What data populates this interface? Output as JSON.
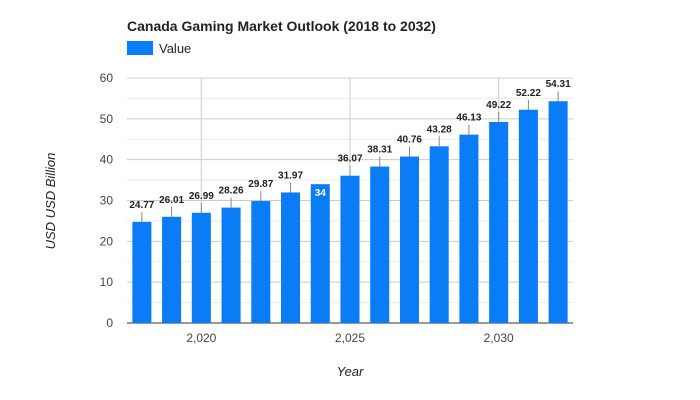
{
  "chart_data": {
    "type": "bar",
    "title": "Canada Gaming Market Outlook (2018 to 2032)",
    "xlabel": "Year",
    "ylabel": "USD USD Billion",
    "legend": {
      "position": "top-left",
      "entries": [
        "Value"
      ]
    },
    "series": [
      {
        "name": "Value",
        "color": "#0a7cf5",
        "x": [
          2018,
          2019,
          2020,
          2021,
          2022,
          2023,
          2024,
          2025,
          2026,
          2027,
          2028,
          2029,
          2030,
          2031,
          2032
        ],
        "values": [
          24.77,
          26.01,
          26.99,
          28.26,
          29.87,
          31.97,
          34,
          36.07,
          38.31,
          40.76,
          43.28,
          46.13,
          49.22,
          52.22,
          54.31
        ],
        "labels": [
          "24.77",
          "26.01",
          "26.99",
          "28.26",
          "29.87",
          "31.97",
          "34",
          "36.07",
          "38.31",
          "40.76",
          "43.28",
          "46.13",
          "49.22",
          "52.22",
          "54.31"
        ],
        "label_inside": [
          false,
          false,
          false,
          false,
          false,
          false,
          true,
          false,
          false,
          false,
          false,
          false,
          false,
          false,
          false
        ]
      }
    ],
    "xticks": [
      2020,
      2025,
      2030
    ],
    "xtick_labels": [
      "2,020",
      "2,025",
      "2,030"
    ],
    "ylim": [
      0,
      60
    ],
    "yticks": [
      0,
      10,
      20,
      30,
      40,
      50,
      60
    ],
    "ytick_labels": [
      "0",
      "10",
      "20",
      "30",
      "40",
      "50",
      "60"
    ],
    "grid": true
  }
}
